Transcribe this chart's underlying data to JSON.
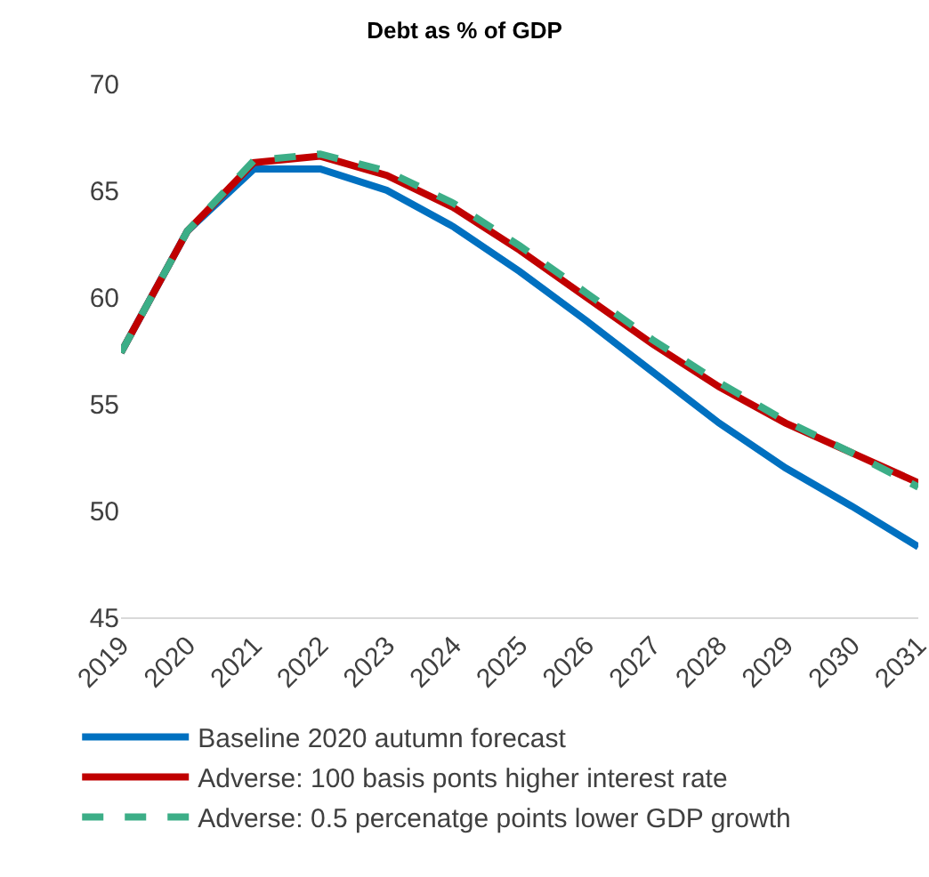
{
  "chart_data": {
    "type": "line",
    "title": "Debt as % of GDP",
    "categories": [
      "2019",
      "2020",
      "2021",
      "2022",
      "2023",
      "2024",
      "2025",
      "2026",
      "2027",
      "2028",
      "2029",
      "2030",
      "2031"
    ],
    "series": [
      {
        "name": "Baseline 2020 autumn forecast",
        "color": "#0070c0",
        "line_style": "solid",
        "values": [
          57.4,
          63.1,
          66.0,
          66.0,
          65.0,
          63.3,
          61.2,
          58.9,
          56.5,
          54.1,
          52.0,
          50.2,
          48.3
        ]
      },
      {
        "name": "Adverse: 100 basis ponts higher interest rate",
        "color": "#c00000",
        "line_style": "solid",
        "values": [
          57.4,
          63.1,
          66.3,
          66.6,
          65.7,
          64.2,
          62.2,
          60.0,
          57.8,
          55.8,
          54.1,
          52.7,
          51.3
        ]
      },
      {
        "name": "Adverse: 0.5 percenatge points lower GDP growth",
        "color": "#3cae87",
        "line_style": "dashed",
        "values": [
          57.4,
          63.1,
          66.4,
          66.7,
          65.9,
          64.4,
          62.4,
          60.2,
          58.0,
          56.0,
          54.2,
          52.7,
          51.1
        ]
      }
    ],
    "ylim": [
      45,
      70
    ],
    "yticks": [
      45,
      50,
      55,
      60,
      65,
      70
    ],
    "legend": "bottom",
    "marker": "none"
  }
}
